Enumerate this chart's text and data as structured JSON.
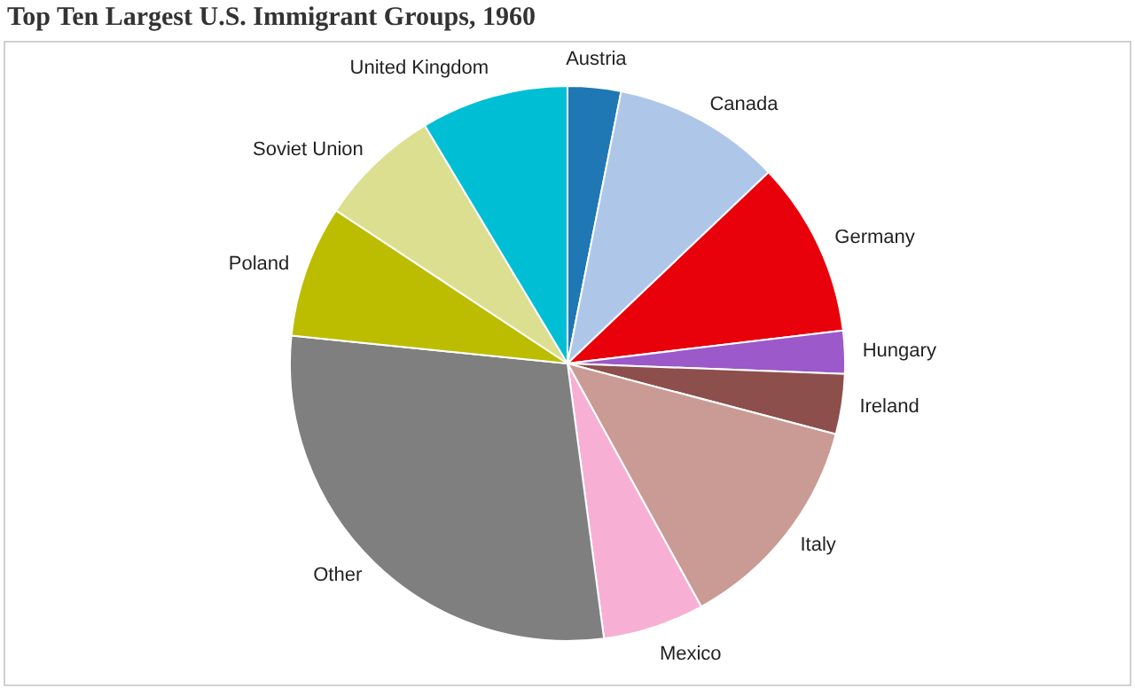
{
  "chart_data": {
    "type": "pie",
    "title": "Top Ten Largest U.S. Immigrant Groups, 1960",
    "categories": [
      "Austria",
      "Canada",
      "Germany",
      "Hungary",
      "Ireland",
      "Italy",
      "Mexico",
      "Other",
      "Poland",
      "Soviet Union",
      "United Kingdom"
    ],
    "values": [
      3.1,
      9.8,
      10.2,
      2.5,
      3.5,
      12.9,
      5.9,
      28.7,
      7.7,
      7.1,
      8.6
    ],
    "colors": [
      "#1f77b4",
      "#aec7e8",
      "#e8000b",
      "#9b59c9",
      "#8c4f4b",
      "#c99b94",
      "#f7b0d4",
      "#7f7f7f",
      "#bcbd00",
      "#dbdf8f",
      "#00bfd4"
    ],
    "legend": false
  }
}
